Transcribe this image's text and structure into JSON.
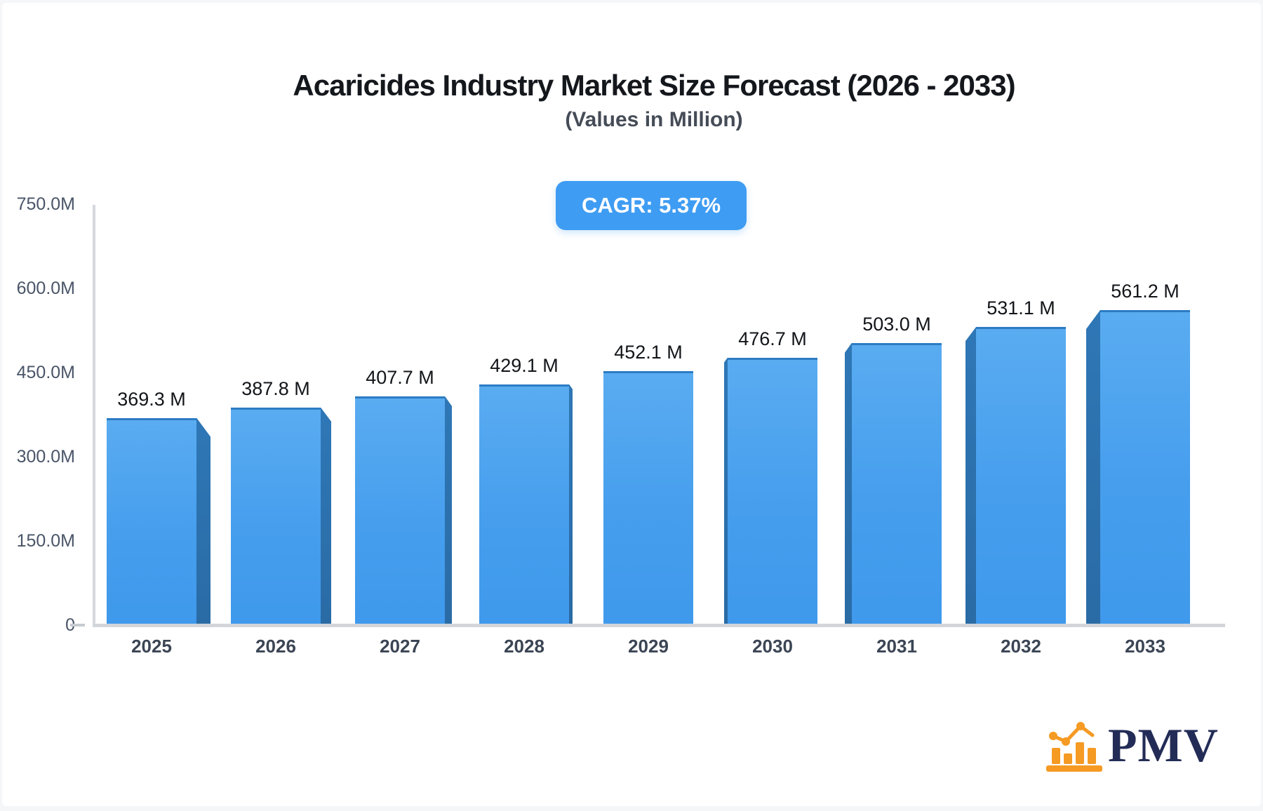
{
  "header": {
    "title": "Acaricides Industry Market Size Forecast (2026 - 2033)",
    "subtitle": "(Values in Million)"
  },
  "badge": {
    "label": "CAGR: 5.37%",
    "background": "#3f9cf3",
    "text_color": "#ffffff"
  },
  "chart_data": {
    "type": "bar",
    "title": "Acaricides Industry Market Size Forecast (2026 - 2033)",
    "subtitle": "(Values in Million)",
    "unit": "Million",
    "cagr": "5.37%",
    "categories": [
      "2025",
      "2026",
      "2027",
      "2028",
      "2029",
      "2030",
      "2031",
      "2032",
      "2033"
    ],
    "values": [
      369.3,
      387.8,
      407.7,
      429.1,
      452.1,
      476.7,
      503.0,
      531.1,
      561.2
    ],
    "bar_labels": [
      "369.3 M",
      "387.8 M",
      "407.7 M",
      "429.1 M",
      "452.1 M",
      "476.7 M",
      "503.0 M",
      "531.1 M",
      "561.2 M"
    ],
    "ylim": [
      0,
      750
    ],
    "yticks": [
      {
        "value": 750,
        "label": "750.0M"
      },
      {
        "value": 600,
        "label": "600.0M"
      },
      {
        "value": 450,
        "label": "450.0M"
      },
      {
        "value": 300,
        "label": "300.0M"
      },
      {
        "value": 150,
        "label": "150.0M"
      },
      {
        "value": 0,
        "label": "0"
      }
    ],
    "grid": false,
    "legend": false,
    "bar_color": "#4aa1ee",
    "bar_side_color": "#2e74b2",
    "axis_color": "#d5d8dd"
  },
  "logo": {
    "text": "PMV",
    "icon": "bar-chart-trend-icon",
    "icon_color": "#f59a23",
    "text_color": "#232c56"
  }
}
